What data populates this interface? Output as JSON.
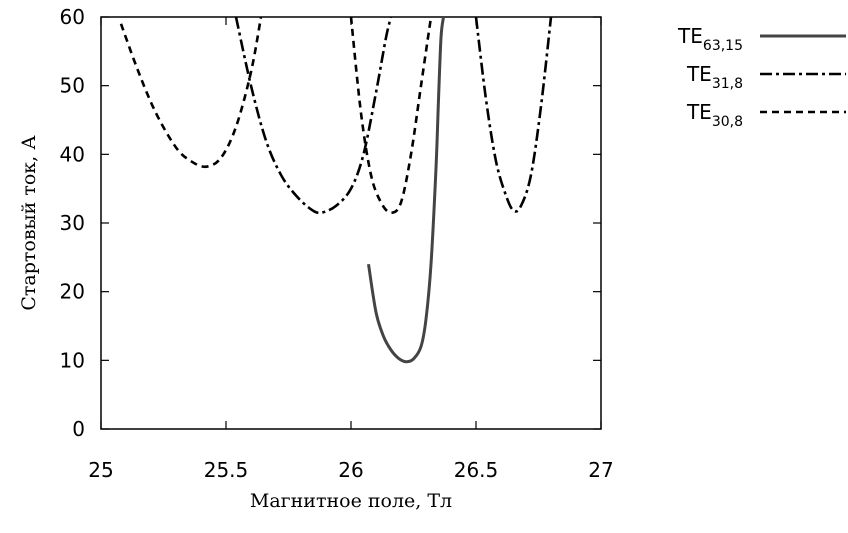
{
  "chart_data": {
    "type": "line",
    "xlabel": "Магнитное поле, Тл",
    "ylabel": "Стартовый ток, А",
    "xlim": [
      25,
      27
    ],
    "ylim": [
      0,
      60
    ],
    "x_ticks": [
      "25",
      "25.5",
      "26",
      "26.5",
      "27"
    ],
    "y_ticks": [
      "0",
      "10",
      "20",
      "30",
      "40",
      "50",
      "60"
    ],
    "grid": false,
    "legend_position": "top-right-outside",
    "series": [
      {
        "name_main": "TE",
        "name_sub": "63,15",
        "style": "solid",
        "color": "#444444",
        "x": [
          26.07,
          26.1,
          26.13,
          26.16,
          26.19,
          26.22,
          26.25,
          26.28,
          26.3,
          26.32,
          26.34,
          26.35,
          26.36,
          26.37
        ],
        "y": [
          24,
          17,
          13.5,
          11.5,
          10.3,
          9.8,
          10.2,
          12,
          16,
          24,
          38,
          48,
          57,
          60
        ]
      },
      {
        "name_main": "TE",
        "name_sub": "31,8",
        "style": "dashdot",
        "color": "#000000",
        "x": [
          25.54,
          25.6,
          25.66,
          25.72,
          25.78,
          25.84,
          25.88,
          25.94,
          26.0,
          26.05,
          26.1,
          26.14,
          26.16
        ],
        "y": [
          60,
          50,
          42,
          37,
          34,
          32,
          31.5,
          32.5,
          35,
          40,
          49,
          57,
          60
        ],
        "x2": [
          26.5,
          26.54,
          26.58,
          26.62,
          26.65,
          26.68,
          26.72,
          26.76,
          26.8
        ],
        "y2": [
          60,
          48,
          39,
          34,
          31.8,
          32.5,
          37,
          47,
          60
        ]
      },
      {
        "name_main": "TE",
        "name_sub": "30,8",
        "style": "dashed",
        "color": "#000000",
        "x": [
          25.08,
          25.15,
          25.22,
          25.3,
          25.36,
          25.42,
          25.48,
          25.54,
          25.6,
          25.64
        ],
        "y": [
          59,
          52,
          46,
          41,
          39,
          38.2,
          39.5,
          44,
          52,
          60
        ],
        "x2": [
          26.0,
          26.04,
          26.08,
          26.12,
          26.16,
          26.2,
          26.24,
          26.28,
          26.32
        ],
        "y2": [
          60,
          46,
          37,
          33,
          31.5,
          33,
          40,
          50,
          60
        ]
      }
    ]
  }
}
